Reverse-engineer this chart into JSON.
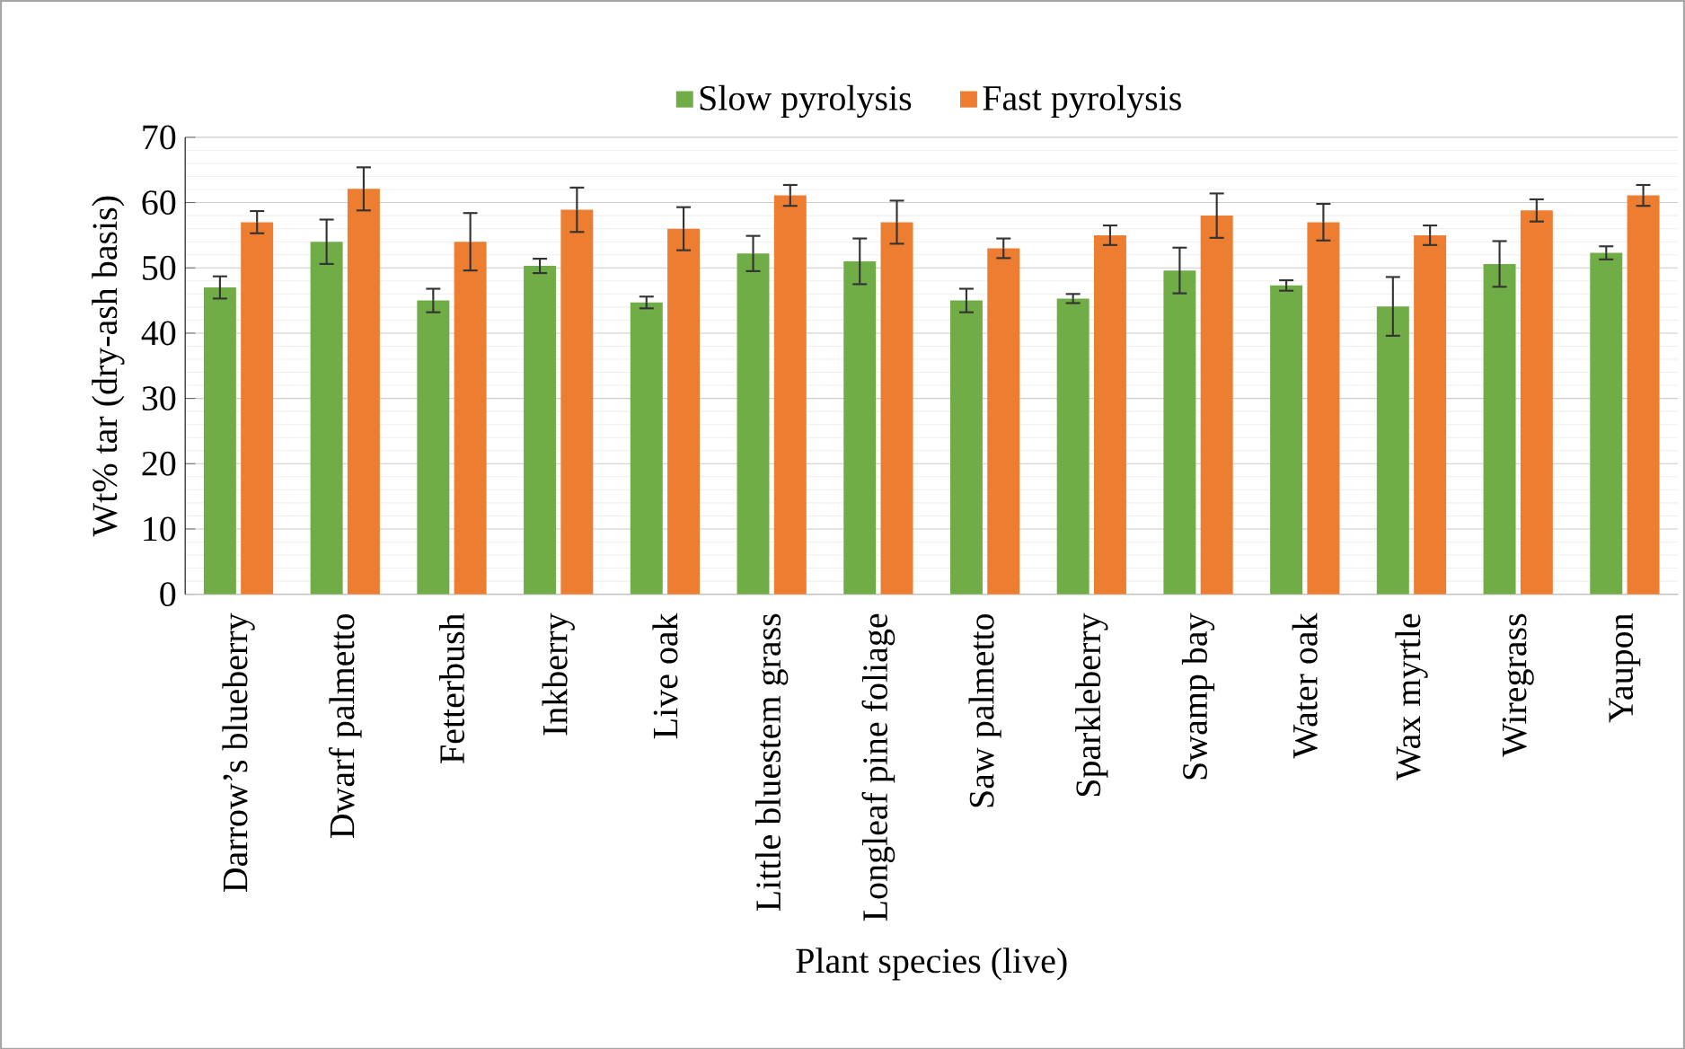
{
  "chart_data": {
    "type": "bar",
    "xlabel": "Plant species (live)",
    "ylabel": "Wt% tar (dry-ash basis)",
    "categories": [
      "Darrow’s blueberry",
      "Dwarf palmetto",
      "Fetterbush",
      "Inkberry",
      "Live oak",
      "Little bluestem grass",
      "Longleaf pine foliage",
      "Saw palmetto",
      "Sparkleberry",
      "Swamp bay",
      "Water oak",
      "Wax myrtle",
      "Wiregrass",
      "Yaupon"
    ],
    "series": [
      {
        "name": "Slow pyrolysis",
        "color": "#70ad47",
        "values": [
          47,
          54,
          45,
          50.3,
          44.7,
          52.2,
          51,
          45,
          45.3,
          49.6,
          47.3,
          44.1,
          50.6,
          52.3
        ],
        "errors": [
          1.7,
          3.4,
          1.8,
          1.1,
          0.9,
          2.7,
          3.5,
          1.8,
          0.7,
          3.5,
          0.8,
          4.5,
          3.5,
          1.0
        ]
      },
      {
        "name": "Fast pyrolysis",
        "color": "#ed7d31",
        "values": [
          57,
          62.1,
          54,
          58.9,
          56,
          61.1,
          57,
          53,
          55,
          58,
          57,
          55,
          58.8,
          61.1
        ],
        "errors": [
          1.7,
          3.3,
          4.4,
          3.4,
          3.3,
          1.6,
          3.3,
          1.5,
          1.5,
          3.4,
          2.8,
          1.5,
          1.7,
          1.6
        ]
      }
    ],
    "ylim": [
      0,
      70
    ],
    "yticks": [
      0,
      10,
      20,
      30,
      40,
      50,
      60,
      70
    ],
    "grid": "y",
    "legend": "top"
  }
}
